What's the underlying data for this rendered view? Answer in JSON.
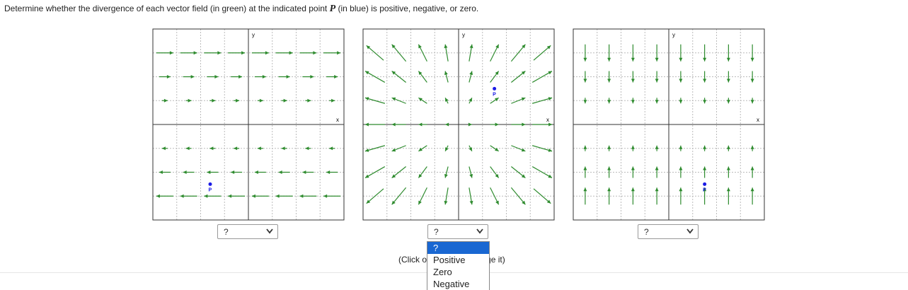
{
  "instruction": {
    "before": "Determine whether the divergence of each vector field (in green) at the indicated point ",
    "point": "P",
    "after": " (in blue) is positive, negative, or zero."
  },
  "graphs": [
    {
      "x_label": "x",
      "y_label": "y",
      "point_label": "P",
      "answer": "?"
    },
    {
      "x_label": "x",
      "y_label": "y",
      "point_label": "P",
      "answer": "?"
    },
    {
      "x_label": "x",
      "y_label": "y",
      "point_label": "P",
      "answer": "?"
    }
  ],
  "click_note": "(Click on graph to enlarge it)",
  "dropdown_options": [
    "?",
    "Positive",
    "Zero",
    "Negative"
  ]
}
